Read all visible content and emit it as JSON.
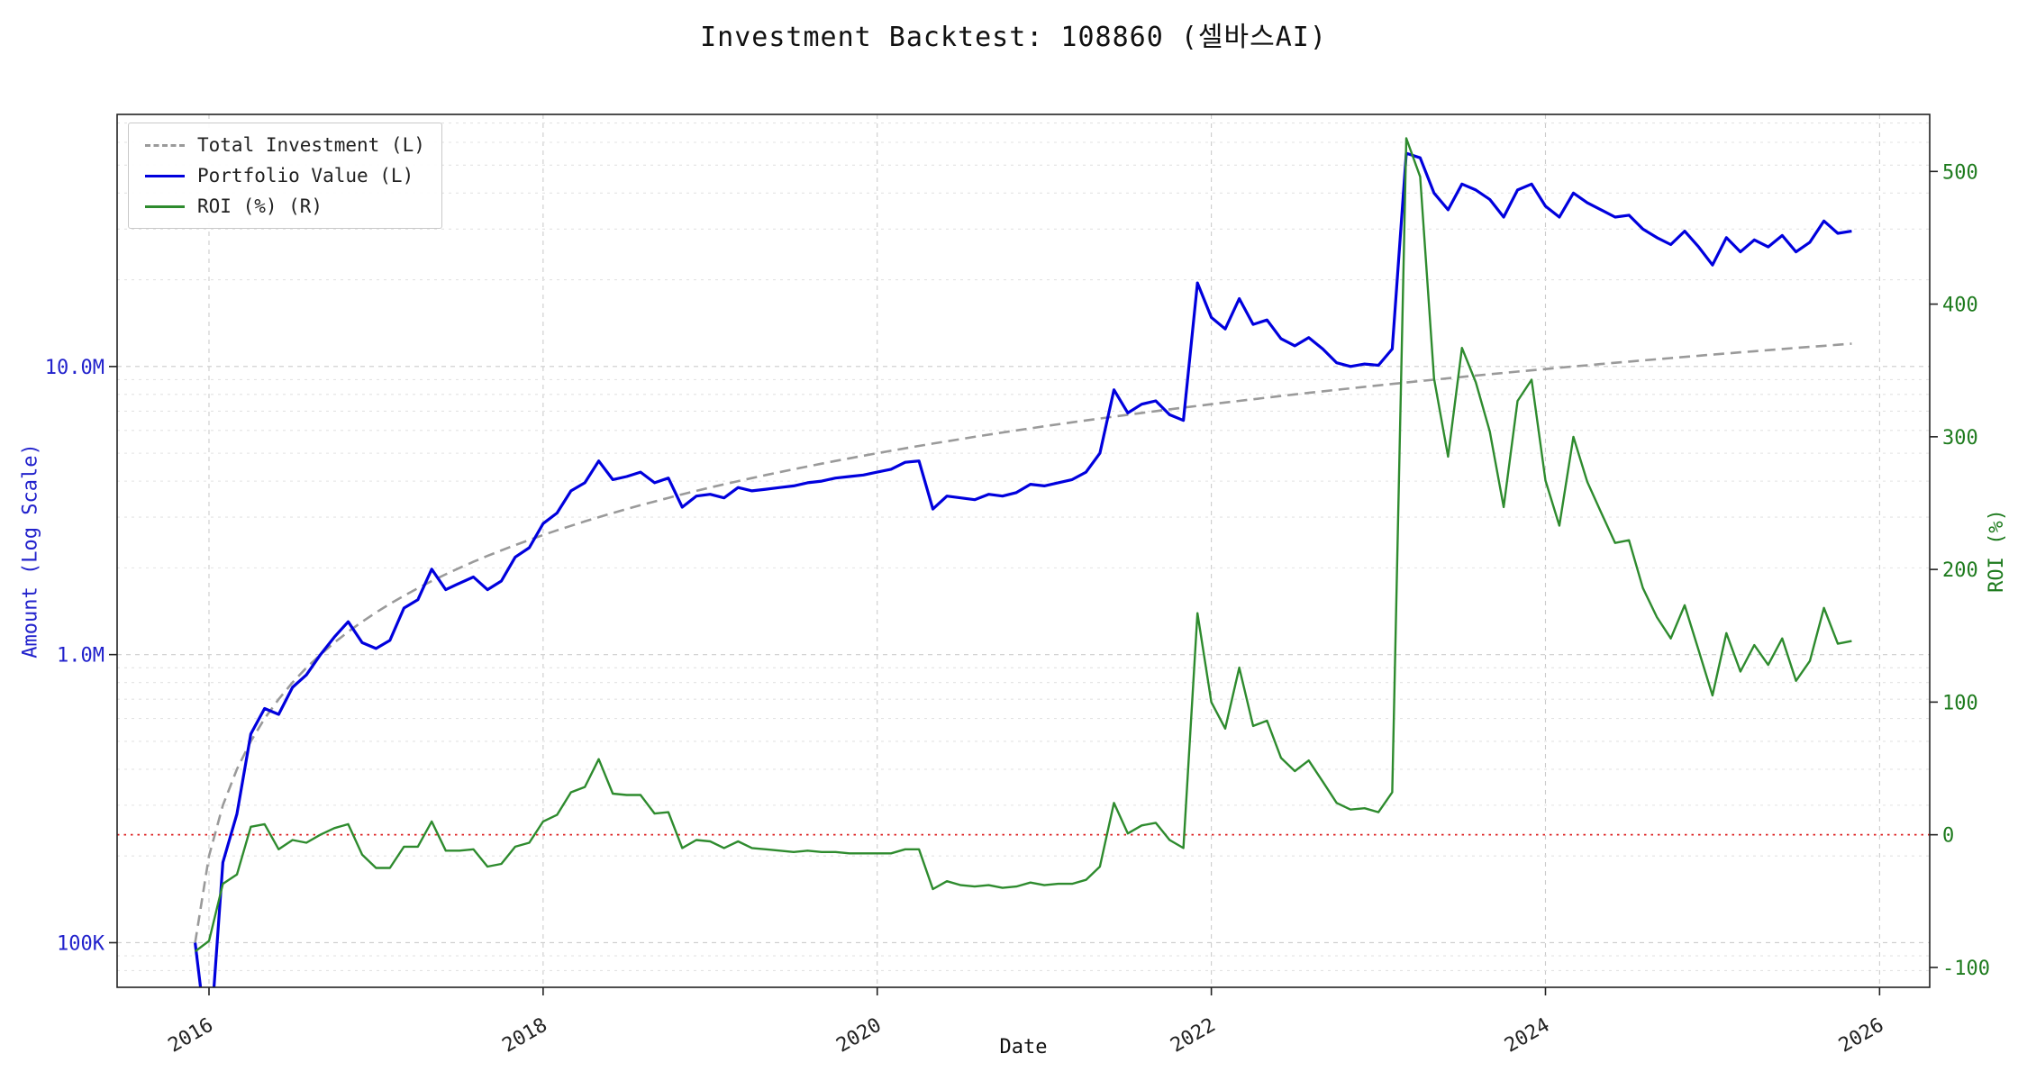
{
  "title": "Investment Backtest: 108860 (셀바스AI)",
  "legend": {
    "items": [
      {
        "label": "Total Investment (L)",
        "color": "#9a9a9a",
        "style": "dashed"
      },
      {
        "label": "Portfolio Value (L)",
        "color": "#0000dd",
        "style": "solid"
      },
      {
        "label": "ROI (%) (R)",
        "color": "#2e8b2e",
        "style": "solid"
      }
    ]
  },
  "axes": {
    "x": {
      "label": "Date",
      "ticks": [
        2016,
        2018,
        2020,
        2022,
        2024,
        2026
      ],
      "range": [
        2015.45,
        2026.3
      ]
    },
    "y_left": {
      "label": "Amount (Log Scale)",
      "color": "#2222cc",
      "scale": "log",
      "ticks": [
        {
          "value_m": 0.1,
          "label": "100K"
        },
        {
          "value_m": 1,
          "label": "1.0M"
        },
        {
          "value_m": 10,
          "label": "10.0M"
        }
      ],
      "range_m": [
        0.07,
        75
      ]
    },
    "y_right": {
      "label": "ROI (%)",
      "color": "#1e7b1e",
      "scale": "linear",
      "ticks": [
        -100,
        0,
        100,
        200,
        300,
        400,
        500
      ],
      "range": [
        -115,
        543
      ]
    }
  },
  "zero_line": {
    "roi": 0,
    "color": "#dd2222",
    "style": "dotted"
  },
  "chart_data": {
    "type": "line",
    "title": "Investment Backtest: 108860 (셀바스AI)",
    "xlabel": "Date",
    "ylabel_left": "Amount (Log Scale)",
    "ylabel_right": "ROI (%)",
    "x_unit": "decimal_year",
    "grid": true,
    "legend_position": "upper-left",
    "x": [
      2015.917,
      2016.0,
      2016.083,
      2016.167,
      2016.25,
      2016.333,
      2016.417,
      2016.5,
      2016.583,
      2016.667,
      2016.75,
      2016.833,
      2016.917,
      2017.0,
      2017.083,
      2017.167,
      2017.25,
      2017.333,
      2017.417,
      2017.5,
      2017.583,
      2017.667,
      2017.75,
      2017.833,
      2017.917,
      2018.0,
      2018.083,
      2018.167,
      2018.25,
      2018.333,
      2018.417,
      2018.5,
      2018.583,
      2018.667,
      2018.75,
      2018.833,
      2018.917,
      2019.0,
      2019.083,
      2019.167,
      2019.25,
      2019.333,
      2019.417,
      2019.5,
      2019.583,
      2019.667,
      2019.75,
      2019.833,
      2019.917,
      2020.0,
      2020.083,
      2020.167,
      2020.25,
      2020.333,
      2020.417,
      2020.5,
      2020.583,
      2020.667,
      2020.75,
      2020.833,
      2020.917,
      2021.0,
      2021.083,
      2021.167,
      2021.25,
      2021.333,
      2021.417,
      2021.5,
      2021.583,
      2021.667,
      2021.75,
      2021.833,
      2021.917,
      2022.0,
      2022.083,
      2022.167,
      2022.25,
      2022.333,
      2022.417,
      2022.5,
      2022.583,
      2022.667,
      2022.75,
      2022.833,
      2022.917,
      2023.0,
      2023.083,
      2023.167,
      2023.25,
      2023.333,
      2023.417,
      2023.5,
      2023.583,
      2023.667,
      2023.75,
      2023.833,
      2023.917,
      2024.0,
      2024.083,
      2024.167,
      2024.25,
      2024.333,
      2024.417,
      2024.5,
      2024.583,
      2024.667,
      2024.75,
      2024.833,
      2024.917,
      2025.0,
      2025.083,
      2025.167,
      2025.25,
      2025.333,
      2025.417,
      2025.5,
      2025.583,
      2025.667,
      2025.75,
      2025.833
    ],
    "series": [
      {
        "name": "Total Investment (L)",
        "axis": "left",
        "unit": "million KRW",
        "style": "dashed",
        "color": "#9a9a9a",
        "values": [
          0.1,
          0.2,
          0.3,
          0.4,
          0.5,
          0.6,
          0.7,
          0.8,
          0.9,
          1,
          1.1,
          1.2,
          1.3,
          1.4,
          1.5,
          1.6,
          1.7,
          1.8,
          1.9,
          2,
          2.1,
          2.2,
          2.3,
          2.4,
          2.5,
          2.6,
          2.7,
          2.8,
          2.9,
          3,
          3.1,
          3.2,
          3.3,
          3.4,
          3.5,
          3.6,
          3.7,
          3.8,
          3.9,
          4,
          4.1,
          4.2,
          4.3,
          4.4,
          4.5,
          4.6,
          4.7,
          4.8,
          4.9,
          5,
          5.1,
          5.2,
          5.3,
          5.4,
          5.5,
          5.6,
          5.7,
          5.8,
          5.9,
          6,
          6.1,
          6.2,
          6.3,
          6.4,
          6.5,
          6.6,
          6.7,
          6.8,
          6.9,
          7,
          7.1,
          7.2,
          7.3,
          7.4,
          7.5,
          7.6,
          7.7,
          7.8,
          7.9,
          8,
          8.1,
          8.2,
          8.3,
          8.4,
          8.5,
          8.6,
          8.7,
          8.8,
          8.9,
          9,
          9.1,
          9.2,
          9.3,
          9.4,
          9.5,
          9.6,
          9.7,
          9.8,
          9.9,
          10,
          10.1,
          10.2,
          10.3,
          10.4,
          10.5,
          10.6,
          10.7,
          10.8,
          10.9,
          11,
          11.1,
          11.2,
          11.3,
          11.4,
          11.5,
          11.6,
          11.7,
          11.8,
          11.9,
          12
        ]
      },
      {
        "name": "Portfolio Value (L)",
        "axis": "left",
        "unit": "million KRW",
        "style": "solid",
        "color": "#0000dd",
        "values": [
          0.1,
          0.04,
          0.19,
          0.28,
          0.53,
          0.65,
          0.62,
          0.77,
          0.85,
          1.0,
          1.15,
          1.3,
          1.1,
          1.05,
          1.12,
          1.45,
          1.55,
          1.98,
          1.68,
          1.77,
          1.86,
          1.68,
          1.8,
          2.18,
          2.35,
          2.85,
          3.1,
          3.7,
          3.95,
          4.7,
          4.05,
          4.15,
          4.3,
          3.95,
          4.1,
          3.25,
          3.55,
          3.6,
          3.5,
          3.8,
          3.7,
          3.75,
          3.8,
          3.85,
          3.95,
          4.0,
          4.1,
          4.15,
          4.2,
          4.3,
          4.4,
          4.65,
          4.7,
          3.2,
          3.55,
          3.5,
          3.45,
          3.6,
          3.55,
          3.65,
          3.9,
          3.85,
          3.95,
          4.05,
          4.3,
          5.0,
          8.3,
          6.9,
          7.4,
          7.6,
          6.8,
          6.5,
          19.5,
          14.8,
          13.5,
          17.2,
          14.0,
          14.5,
          12.5,
          11.8,
          12.6,
          11.5,
          10.3,
          10.0,
          10.2,
          10.1,
          11.5,
          55.0,
          53.0,
          40.0,
          35.0,
          43.0,
          41.0,
          38.0,
          33.0,
          41.0,
          43.0,
          36.0,
          33.0,
          40.0,
          37.0,
          35.0,
          33.0,
          33.5,
          30.0,
          28.0,
          26.5,
          29.5,
          26.0,
          22.5,
          28.0,
          25.0,
          27.5,
          26.0,
          28.5,
          25.0,
          27.0,
          32.0,
          29.0,
          29.5
        ]
      },
      {
        "name": "ROI (%) (R)",
        "axis": "right",
        "unit": "percent",
        "style": "solid",
        "color": "#2e8b2e",
        "values": [
          -88,
          -80,
          -37,
          -30,
          6,
          8,
          -11,
          -4,
          -6,
          0,
          5,
          8,
          -15,
          -25,
          -25,
          -9,
          -9,
          10,
          -12,
          -12,
          -11,
          -24,
          -22,
          -9,
          -6,
          10,
          15,
          32,
          36,
          57,
          31,
          30,
          30,
          16,
          17,
          -10,
          -4,
          -5,
          -10,
          -5,
          -10,
          -11,
          -12,
          -13,
          -12,
          -13,
          -13,
          -14,
          -14,
          -14,
          -14,
          -11,
          -11,
          -41,
          -35,
          -38,
          -39,
          -38,
          -40,
          -39,
          -36,
          -38,
          -37,
          -37,
          -34,
          -24,
          24,
          1,
          7,
          9,
          -4,
          -10,
          167,
          100,
          80,
          126,
          82,
          86,
          58,
          48,
          56,
          40,
          24,
          19,
          20,
          17,
          32,
          525,
          496,
          344,
          285,
          367,
          341,
          304,
          247,
          327,
          343,
          267,
          233,
          300,
          266,
          243,
          220,
          222,
          186,
          164,
          148,
          173,
          139,
          105,
          152,
          123,
          143,
          128,
          148,
          116,
          131,
          171,
          144,
          146
        ]
      }
    ]
  }
}
